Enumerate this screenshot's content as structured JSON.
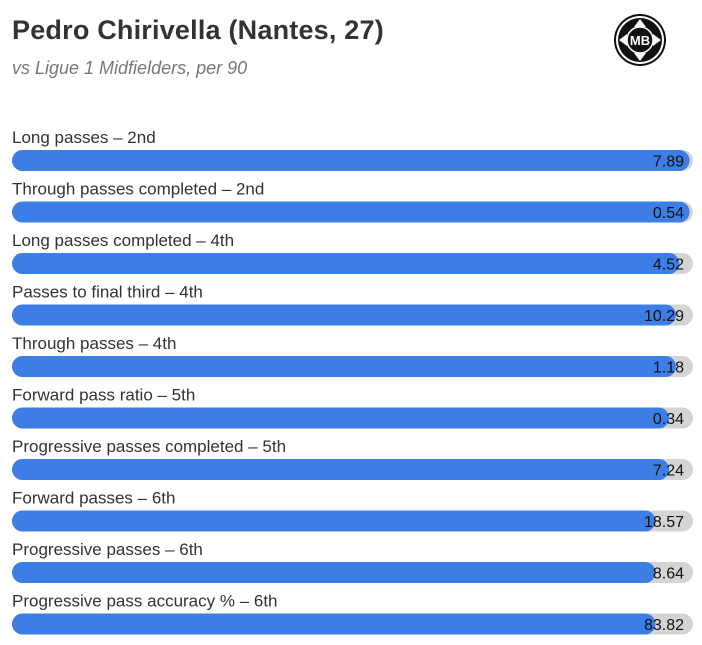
{
  "header": {
    "title": "Pedro Chirivella (Nantes, 27)",
    "subtitle": "vs Ligue 1 Midfielders, per 90",
    "logo_text": "MB",
    "logo_icon": "mb-badge-icon"
  },
  "colors": {
    "bar_fill": "#3d7ee6",
    "bar_track": "#d4d4d4",
    "title": "#333333",
    "subtitle": "#777777"
  },
  "chart_data": {
    "type": "bar",
    "orientation": "horizontal",
    "grid": false,
    "legend": "none",
    "bars": [
      {
        "label": "Long passes – 2nd",
        "value": 7.89,
        "value_label": "7.89",
        "percentile": 99.5
      },
      {
        "label": "Through passes completed – 2nd",
        "value": 0.54,
        "value_label": "0.54",
        "percentile": 99.5
      },
      {
        "label": "Long passes completed – 4th",
        "value": 4.52,
        "value_label": "4.52",
        "percentile": 98.0
      },
      {
        "label": "Passes to final third – 4th",
        "value": 10.29,
        "value_label": "10.29",
        "percentile": 97.5
      },
      {
        "label": "Through passes – 4th",
        "value": 1.18,
        "value_label": "1.18",
        "percentile": 97.5
      },
      {
        "label": "Forward pass ratio – 5th",
        "value": 0.34,
        "value_label": "0.34",
        "percentile": 96.5
      },
      {
        "label": "Progressive passes completed – 5th",
        "value": 7.24,
        "value_label": "7.24",
        "percentile": 96.5
      },
      {
        "label": "Forward passes – 6th",
        "value": 18.57,
        "value_label": "18.57",
        "percentile": 94.5
      },
      {
        "label": "Progressive passes – 6th",
        "value": 8.64,
        "value_label": "8.64",
        "percentile": 94.5
      },
      {
        "label": "Progressive pass accuracy % – 6th",
        "value": 83.82,
        "value_label": "83.82",
        "percentile": 94.5
      }
    ]
  }
}
